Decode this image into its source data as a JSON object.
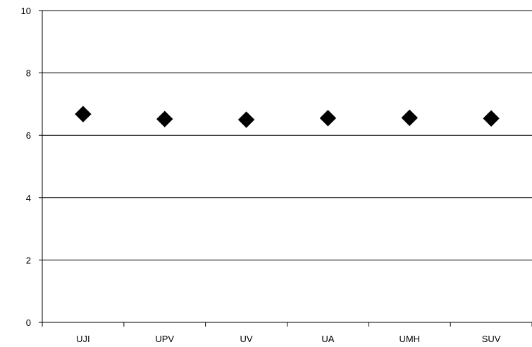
{
  "chart_data": {
    "type": "scatter",
    "categories": [
      "UJI",
      "UPV",
      "UV",
      "UA",
      "UMH",
      "SUV"
    ],
    "values": [
      6.68,
      6.52,
      6.5,
      6.55,
      6.56,
      6.54
    ],
    "ylim": [
      0,
      10
    ],
    "yticks": [
      0,
      2,
      4,
      6,
      8,
      10
    ],
    "grid": true,
    "marker": "diamond",
    "color": "#000000",
    "title": "",
    "xlabel": "",
    "ylabel": ""
  }
}
